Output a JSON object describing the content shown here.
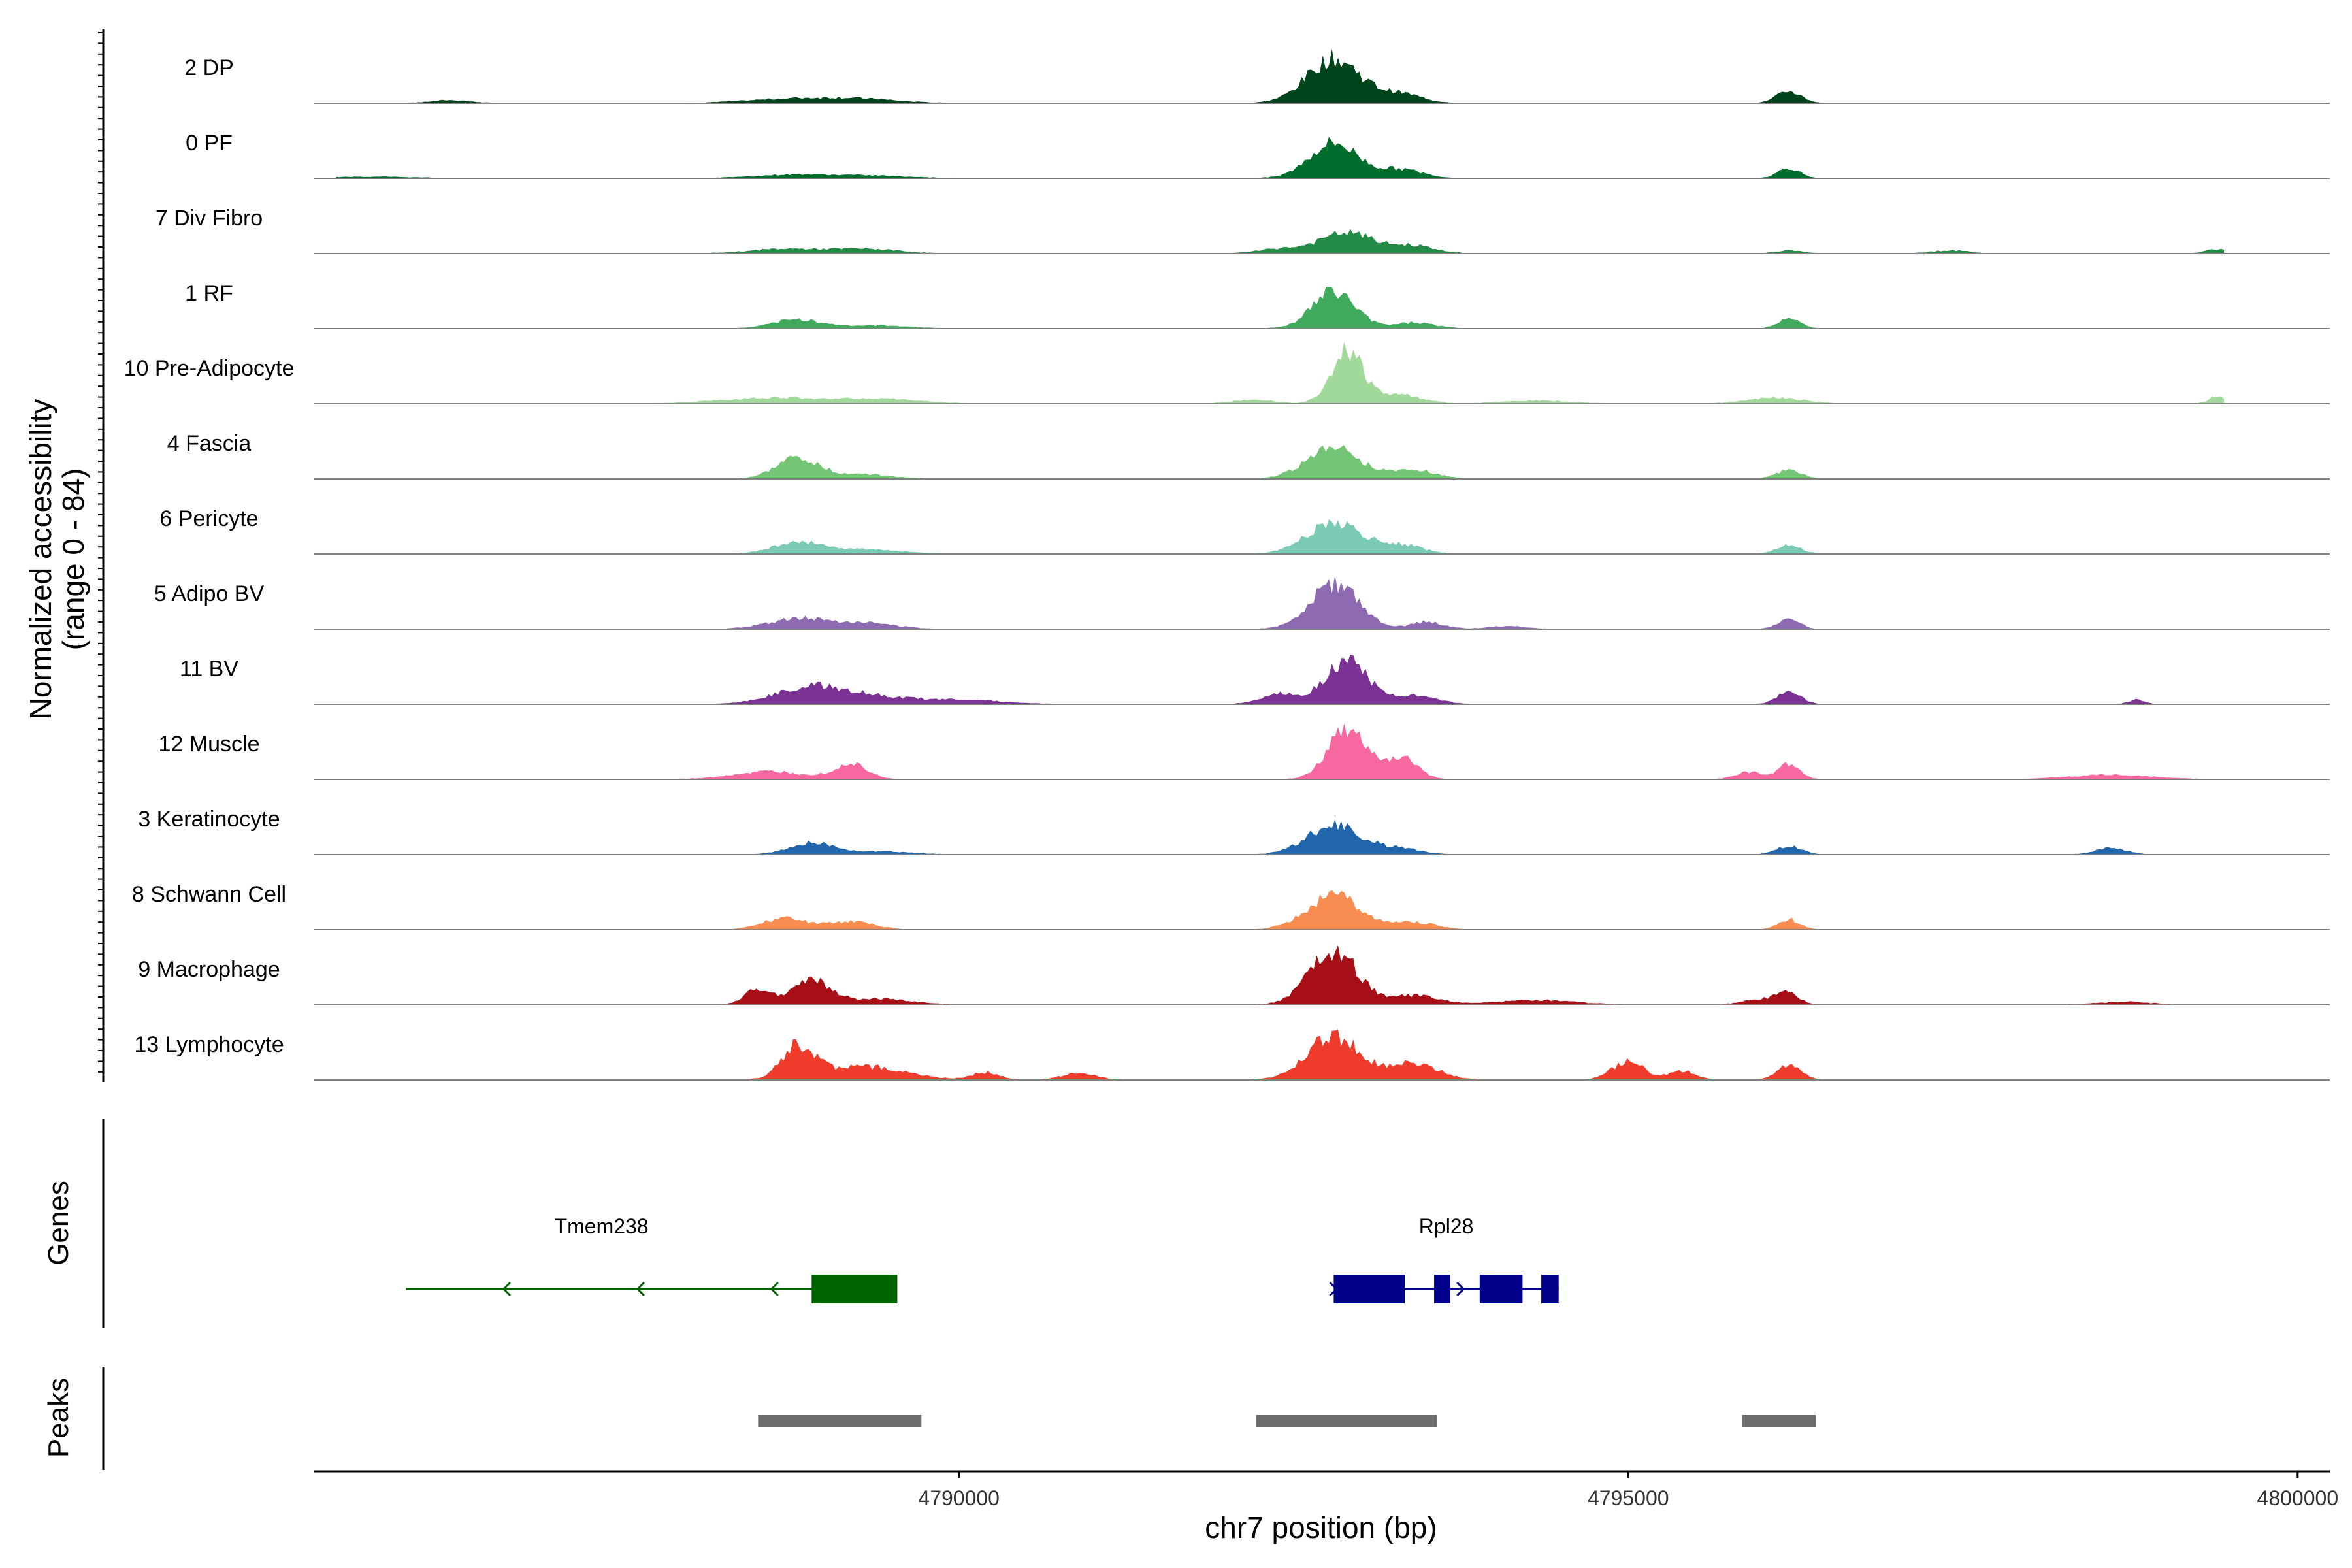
{
  "chart_data": {
    "type": "area",
    "title": "",
    "xlabel": "chr7 position (bp)",
    "ylabel": "Normalized accessibility",
    "ylabel_range": "(range 0 - 84)",
    "ylim": [
      0,
      84
    ],
    "xlim": [
      4785180,
      4800240
    ],
    "x_ticks": [
      4790000,
      4795000,
      4800000
    ],
    "x_tick_labels": [
      "4790000",
      "4795000",
      "4800000"
    ],
    "tracks": [
      {
        "name": "2 DP",
        "color": "#00441B",
        "peaks": [
          [
            4786200,
            4,
            140
          ],
          [
            4788800,
            6,
            360
          ],
          [
            4789300,
            4,
            280
          ],
          [
            4792800,
            60,
            200
          ],
          [
            4793300,
            12,
            160
          ],
          [
            4796200,
            16,
            90
          ]
        ]
      },
      {
        "name": "0 PF",
        "color": "#006D2C",
        "peaks": [
          [
            4785600,
            2,
            300
          ],
          [
            4788800,
            5,
            300
          ],
          [
            4789400,
            3,
            260
          ],
          [
            4792800,
            48,
            180
          ],
          [
            4793300,
            12,
            160
          ],
          [
            4796200,
            14,
            80
          ]
        ]
      },
      {
        "name": "7 Div Fibro",
        "color": "#238B45",
        "peaks": [
          [
            4788700,
            6,
            260
          ],
          [
            4789300,
            6,
            240
          ],
          [
            4792400,
            6,
            160
          ],
          [
            4792900,
            28,
            200
          ],
          [
            4793400,
            10,
            160
          ],
          [
            4796200,
            4,
            100
          ],
          [
            4797400,
            4,
            140
          ],
          [
            4799400,
            6,
            80
          ]
        ]
      },
      {
        "name": "1 RF",
        "color": "#41AB5D",
        "peaks": [
          [
            4788800,
            12,
            180
          ],
          [
            4789400,
            4,
            240
          ],
          [
            4792800,
            50,
            160
          ],
          [
            4793400,
            8,
            150
          ],
          [
            4796200,
            14,
            80
          ]
        ]
      },
      {
        "name": "10 Pre-Adipocyte",
        "color": "#A1D99B",
        "peaks": [
          [
            4788600,
            8,
            360
          ],
          [
            4789400,
            6,
            300
          ],
          [
            4792200,
            6,
            140
          ],
          [
            4792900,
            72,
            120
          ],
          [
            4793300,
            12,
            160
          ],
          [
            4794300,
            4,
            240
          ],
          [
            4796100,
            8,
            200
          ],
          [
            4799400,
            10,
            60
          ]
        ]
      },
      {
        "name": "4 Fascia",
        "color": "#74C476",
        "peaks": [
          [
            4788800,
            28,
            160
          ],
          [
            4789300,
            6,
            200
          ],
          [
            4792800,
            42,
            200
          ],
          [
            4793400,
            12,
            160
          ],
          [
            4796200,
            12,
            90
          ]
        ]
      },
      {
        "name": "6 Pericyte",
        "color": "#7BCBB4",
        "peaks": [
          [
            4788800,
            16,
            180
          ],
          [
            4789300,
            6,
            260
          ],
          [
            4792800,
            42,
            200
          ],
          [
            4793300,
            12,
            160
          ],
          [
            4796200,
            12,
            90
          ]
        ]
      },
      {
        "name": "5 Adipo BV",
        "color": "#8E6BB0",
        "peaks": [
          [
            4788800,
            14,
            220
          ],
          [
            4789300,
            8,
            220
          ],
          [
            4792800,
            62,
            180
          ],
          [
            4793500,
            10,
            120
          ],
          [
            4794100,
            4,
            140
          ],
          [
            4796200,
            14,
            80
          ]
        ]
      },
      {
        "name": "11 BV",
        "color": "#7B3294",
        "peaks": [
          [
            4788900,
            24,
            260
          ],
          [
            4789400,
            8,
            240
          ],
          [
            4790000,
            6,
            300
          ],
          [
            4792400,
            14,
            140
          ],
          [
            4792900,
            58,
            160
          ],
          [
            4793400,
            12,
            160
          ],
          [
            4796200,
            16,
            90
          ],
          [
            4798800,
            6,
            60
          ]
        ]
      },
      {
        "name": "12 Muscle",
        "color": "#F768A1",
        "peaks": [
          [
            4788600,
            10,
            280
          ],
          [
            4789200,
            20,
            120
          ],
          [
            4792900,
            72,
            140
          ],
          [
            4793300,
            30,
            120
          ],
          [
            4795900,
            10,
            100
          ],
          [
            4796200,
            20,
            80
          ],
          [
            4798600,
            6,
            300
          ]
        ]
      },
      {
        "name": "3 Keratinocyte",
        "color": "#2166AC",
        "peaks": [
          [
            4788900,
            16,
            160
          ],
          [
            4789400,
            4,
            240
          ],
          [
            4792800,
            40,
            200
          ],
          [
            4793300,
            8,
            160
          ],
          [
            4796200,
            12,
            90
          ],
          [
            4798600,
            8,
            120
          ]
        ]
      },
      {
        "name": "8 Schwann Cell",
        "color": "#F88D52",
        "peaks": [
          [
            4788700,
            16,
            160
          ],
          [
            4789200,
            12,
            160
          ],
          [
            4792800,
            46,
            200
          ],
          [
            4793400,
            10,
            160
          ],
          [
            4796200,
            14,
            80
          ]
        ]
      },
      {
        "name": "9 Macrophage",
        "color": "#A50F15",
        "peaks": [
          [
            4788500,
            20,
            100
          ],
          [
            4788900,
            34,
            140
          ],
          [
            4789400,
            8,
            240
          ],
          [
            4792800,
            72,
            180
          ],
          [
            4793400,
            12,
            180
          ],
          [
            4794300,
            6,
            300
          ],
          [
            4796000,
            8,
            140
          ],
          [
            4796200,
            14,
            80
          ],
          [
            4798700,
            4,
            200
          ]
        ]
      },
      {
        "name": "13 Lymphocyte",
        "color": "#EF3B2C",
        "peaks": [
          [
            4788800,
            44,
            120
          ],
          [
            4789300,
            18,
            300
          ],
          [
            4792800,
            58,
            200
          ],
          [
            4793400,
            22,
            180
          ],
          [
            4795000,
            24,
            120
          ],
          [
            4795400,
            12,
            100
          ],
          [
            4796200,
            20,
            90
          ],
          [
            4790200,
            10,
            100
          ],
          [
            4790900,
            10,
            120
          ]
        ]
      }
    ],
    "genes_panel_title": "Genes",
    "genes": [
      {
        "name": "Tmem238",
        "strand": "-",
        "start": 4785870,
        "end": 4789540,
        "color": "#006400",
        "exons": [
          [
            4788900,
            4789540
          ]
        ],
        "arrows": [
          4786600,
          4787600,
          4788600
        ]
      },
      {
        "name": "Rpl28",
        "strand": "+",
        "start": 4792800,
        "end": 4794480,
        "color": "#00008B",
        "exons": [
          [
            4792800,
            4793330
          ],
          [
            4793550,
            4793670
          ],
          [
            4793890,
            4794210
          ],
          [
            4794350,
            4794480
          ]
        ],
        "arrows": [
          4792820,
          4793770
        ]
      }
    ],
    "peaks_panel_title": "Peaks",
    "peak_regions": [
      [
        4788500,
        4789720
      ],
      [
        4792220,
        4793570
      ],
      [
        4795850,
        4796400
      ]
    ],
    "peak_color": "#6E6E6E"
  }
}
